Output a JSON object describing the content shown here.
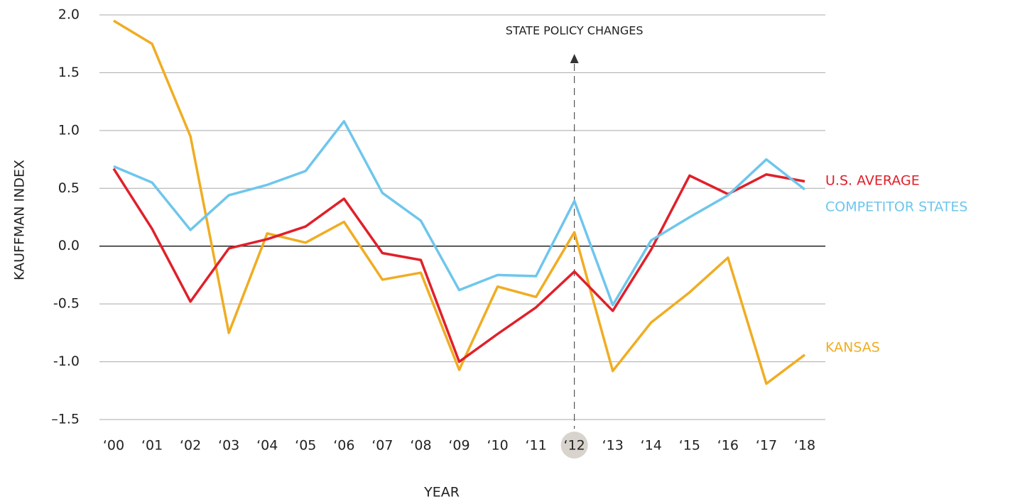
{
  "chart_data": {
    "type": "line",
    "y_label": "KAUFFMAN INDEX",
    "x_label": "YEAR",
    "categories": [
      "‘00",
      "‘01",
      "‘02",
      "‘03",
      "‘04",
      "‘05",
      "‘06",
      "‘07",
      "‘08",
      "‘09",
      "‘10",
      "‘11",
      "‘12",
      "‘13",
      "‘14",
      "‘15",
      "‘16",
      "‘17",
      "‘18"
    ],
    "series": [
      {
        "name": "KANSAS",
        "color": "#f0ad22",
        "values": [
          1.95,
          1.75,
          0.95,
          -0.75,
          0.11,
          0.03,
          0.21,
          -0.29,
          -0.23,
          -1.07,
          -0.35,
          -0.44,
          0.12,
          -1.08,
          -0.66,
          -0.4,
          -0.1,
          -1.19,
          -0.94
        ]
      },
      {
        "name": "U.S. AVERAGE",
        "color": "#e0202a",
        "values": [
          0.67,
          0.15,
          -0.48,
          -0.02,
          0.06,
          0.17,
          0.41,
          -0.06,
          -0.12,
          -1.0,
          -0.76,
          -0.53,
          -0.22,
          -0.56,
          -0.03,
          0.61,
          0.45,
          0.62,
          0.56
        ]
      },
      {
        "name": "COMPETITOR STATES",
        "color": "#6ec6ec",
        "values": [
          0.69,
          0.55,
          0.14,
          0.44,
          0.53,
          0.65,
          1.08,
          0.46,
          0.22,
          -0.38,
          -0.25,
          -0.26,
          0.39,
          -0.51,
          0.05,
          0.25,
          0.44,
          0.75,
          0.49
        ]
      }
    ],
    "ylim": [
      -1.5,
      2.0
    ],
    "yticks": [
      {
        "value": 2.0,
        "label": "2.0"
      },
      {
        "value": 1.5,
        "label": "1.5"
      },
      {
        "value": 1.0,
        "label": "1.0"
      },
      {
        "value": 0.5,
        "label": "0.5"
      },
      {
        "value": 0,
        "label": "0.0"
      },
      {
        "value": -0.5,
        "label": "-0.5"
      },
      {
        "value": -1.0,
        "label": "-1.0"
      },
      {
        "value": -1.5,
        "label": "–1.5"
      }
    ],
    "grid": true,
    "annotation": {
      "text": "STATE POLICY CHANGES",
      "x": "‘12"
    }
  }
}
